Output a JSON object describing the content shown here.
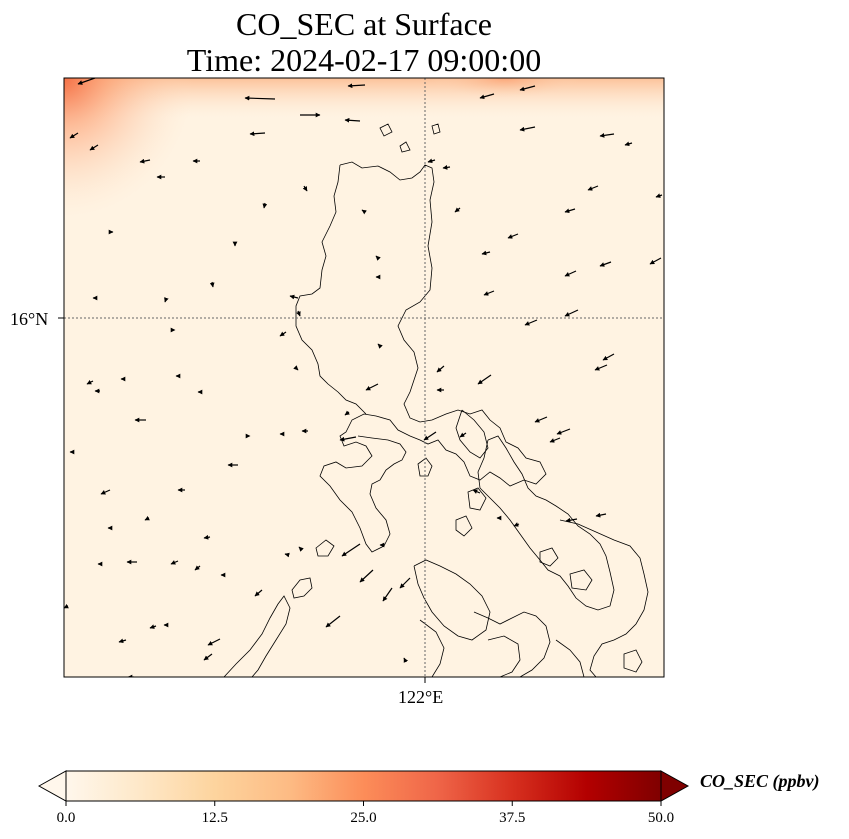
{
  "title_line1": "CO_SEC at Surface",
  "title_line2": "Time: 2024-02-17 09:00:00",
  "map": {
    "variable": "CO_SEC",
    "level": "Surface",
    "lat_gridline_label": "16°N",
    "lon_gridline_label": "122°E",
    "region": "Luzon, Philippines",
    "coastline_color": "#000000",
    "gridline_style": "dotted",
    "background_field_color": "#fff3e2",
    "high_concentration_corner": "top-left",
    "wind_vectors": "black arrows, predominantly from the east-northeast"
  },
  "colorbar": {
    "label": "CO_SEC (ppbv)",
    "ticks": [
      "0.0",
      "12.5",
      "25.0",
      "37.5",
      "50.0"
    ],
    "min": 0.0,
    "max": 50.0,
    "colormap": "OrRd",
    "extend": "both",
    "colors": [
      "#fff7ec",
      "#fee8c8",
      "#fdd49e",
      "#fdbb84",
      "#fc8d59",
      "#ef6548",
      "#d7301f",
      "#b30000",
      "#7f0000"
    ]
  }
}
